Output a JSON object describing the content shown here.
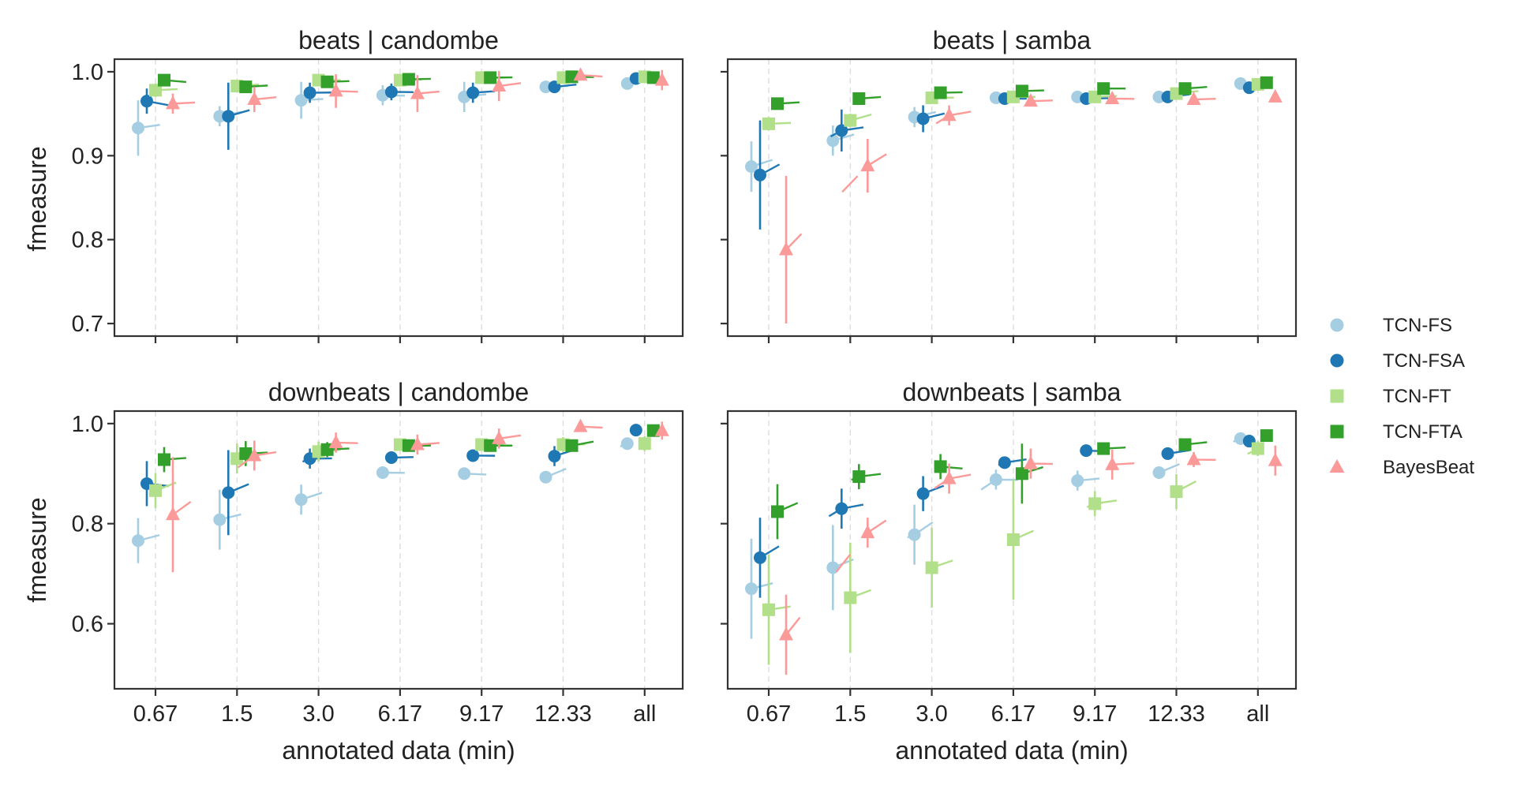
{
  "chart_data": {
    "type": "scatter",
    "description_kind": "point-plot with error bars, 2x2 facets",
    "x_categories": [
      "0.67",
      "1.5",
      "3.0",
      "6.17",
      "9.17",
      "12.33",
      "all"
    ],
    "xlabel": "annotated data (min)",
    "ylabel": "fmeasure",
    "grid": "vertical dashed",
    "legend_position": "right",
    "series": [
      {
        "name": "TCN-FS",
        "color": "#a6cee3",
        "marker": "circle"
      },
      {
        "name": "TCN-FSA",
        "color": "#1f78b4",
        "marker": "circle"
      },
      {
        "name": "TCN-FT",
        "color": "#b2df8a",
        "marker": "square"
      },
      {
        "name": "TCN-FTA",
        "color": "#33a02c",
        "marker": "square"
      },
      {
        "name": "BayesBeat",
        "color": "#fb9a99",
        "marker": "triangle"
      }
    ],
    "panels": [
      {
        "title": "beats | candombe",
        "ylim": [
          0.685,
          1.015
        ],
        "yticks": [
          "0.7",
          "0.8",
          "0.9",
          "1.0"
        ],
        "yticks_values": [
          0.7,
          0.8,
          0.9,
          1.0
        ],
        "values": {
          "TCN-FS": [
            0.933,
            0.947,
            0.966,
            0.972,
            0.97,
            0.982,
            0.986
          ],
          "TCN-FSA": [
            0.965,
            0.947,
            0.975,
            0.976,
            0.975,
            0.982,
            0.992
          ],
          "TCN-FT": [
            0.978,
            0.983,
            0.99,
            0.99,
            0.993,
            0.993,
            0.994
          ],
          "TCN-FTA": [
            0.99,
            0.982,
            0.988,
            0.991,
            0.993,
            0.994,
            0.993
          ],
          "BayesBeat": [
            0.962,
            0.967,
            0.977,
            0.974,
            0.983,
            0.996,
            0.99
          ]
        },
        "errors": {
          "TCN-FS": [
            0.033,
            0.012,
            0.022,
            0.012,
            0.018,
            0.004,
            0.006
          ],
          "TCN-FSA": [
            0.015,
            0.04,
            0.012,
            0.01,
            0.012,
            0.005,
            0.004
          ],
          "TCN-FT": [
            0.008,
            0.006,
            0.004,
            0.004,
            0.003,
            0.003,
            0.003
          ],
          "TCN-FTA": [
            0.004,
            0.005,
            0.004,
            0.003,
            0.003,
            0.003,
            0.003
          ],
          "BayesBeat": [
            0.012,
            0.015,
            0.02,
            0.022,
            0.018,
            0.004,
            0.012
          ]
        }
      },
      {
        "title": "beats | samba",
        "ylim": [
          0.685,
          1.015
        ],
        "yticks": [
          "0.7",
          "0.8",
          "0.9",
          "1.0"
        ],
        "yticks_values": [
          0.7,
          0.8,
          0.9,
          1.0
        ],
        "values": {
          "TCN-FS": [
            0.887,
            0.918,
            0.946,
            0.969,
            0.97,
            0.97,
            0.986
          ],
          "TCN-FSA": [
            0.877,
            0.93,
            0.944,
            0.968,
            0.968,
            0.97,
            0.981
          ],
          "TCN-FT": [
            0.938,
            0.942,
            0.969,
            0.97,
            0.97,
            0.974,
            0.985
          ],
          "TCN-FTA": [
            0.962,
            0.968,
            0.975,
            0.977,
            0.98,
            0.98,
            0.987
          ],
          "BayesBeat": [
            0.788,
            0.888,
            0.948,
            0.965,
            0.968,
            0.967,
            0.97
          ]
        },
        "errors": {
          "TCN-FS": [
            0.03,
            0.018,
            0.012,
            0.005,
            0.004,
            0.004,
            0.004
          ],
          "TCN-FSA": [
            0.065,
            0.025,
            0.016,
            0.005,
            0.004,
            0.004,
            0.004
          ],
          "TCN-FT": [
            0.008,
            0.008,
            0.006,
            0.004,
            0.004,
            0.004,
            0.003
          ],
          "TCN-FTA": [
            0.004,
            0.004,
            0.004,
            0.003,
            0.003,
            0.003,
            0.003
          ],
          "BayesBeat": [
            0.088,
            0.032,
            0.012,
            0.006,
            0.005,
            0.005,
            0.004
          ]
        }
      },
      {
        "title": "downbeats | candombe",
        "ylim": [
          0.47,
          1.025
        ],
        "yticks": [
          "0.6",
          "0.8",
          "1.0"
        ],
        "yticks_values": [
          0.6,
          0.8,
          1.0
        ],
        "values": {
          "TCN-FS": [
            0.766,
            0.808,
            0.848,
            0.902,
            0.9,
            0.893,
            0.96
          ],
          "TCN-FSA": [
            0.88,
            0.862,
            0.93,
            0.932,
            0.936,
            0.935,
            0.987
          ],
          "TCN-FT": [
            0.866,
            0.93,
            0.944,
            0.958,
            0.958,
            0.958,
            0.96
          ],
          "TCN-FTA": [
            0.928,
            0.94,
            0.948,
            0.956,
            0.956,
            0.956,
            0.986
          ],
          "BayesBeat": [
            0.818,
            0.936,
            0.962,
            0.958,
            0.97,
            0.994,
            0.986
          ]
        },
        "errors": {
          "TCN-FS": [
            0.045,
            0.06,
            0.03,
            0.01,
            0.008,
            0.01,
            0.012
          ],
          "TCN-FSA": [
            0.045,
            0.085,
            0.02,
            0.01,
            0.01,
            0.02,
            0.008
          ],
          "TCN-FT": [
            0.035,
            0.03,
            0.02,
            0.012,
            0.012,
            0.015,
            0.015
          ],
          "TCN-FTA": [
            0.025,
            0.025,
            0.015,
            0.01,
            0.01,
            0.01,
            0.005
          ],
          "BayesBeat": [
            0.115,
            0.03,
            0.02,
            0.02,
            0.02,
            0.005,
            0.018
          ]
        }
      },
      {
        "title": "downbeats | samba",
        "ylim": [
          0.47,
          1.025
        ],
        "yticks": [
          "0.6",
          "0.8",
          "1.0"
        ],
        "yticks_values": [
          0.6,
          0.8,
          1.0
        ],
        "values": {
          "TCN-FS": [
            0.67,
            0.712,
            0.778,
            0.888,
            0.886,
            0.902,
            0.97
          ],
          "TCN-FSA": [
            0.732,
            0.83,
            0.86,
            0.922,
            0.946,
            0.94,
            0.965
          ],
          "TCN-FT": [
            0.628,
            0.652,
            0.712,
            0.768,
            0.84,
            0.864,
            0.95
          ],
          "TCN-FTA": [
            0.824,
            0.894,
            0.914,
            0.9,
            0.95,
            0.958,
            0.976
          ],
          "BayesBeat": [
            0.578,
            0.782,
            0.89,
            0.92,
            0.918,
            0.928,
            0.926
          ]
        },
        "errors": {
          "TCN-FS": [
            0.1,
            0.085,
            0.06,
            0.02,
            0.02,
            0.012,
            0.008
          ],
          "TCN-FSA": [
            0.08,
            0.04,
            0.035,
            0.012,
            0.008,
            0.01,
            0.008
          ],
          "TCN-FT": [
            0.11,
            0.11,
            0.08,
            0.12,
            0.025,
            0.035,
            0.015
          ],
          "TCN-FTA": [
            0.055,
            0.025,
            0.025,
            0.06,
            0.012,
            0.01,
            0.008
          ],
          "BayesBeat": [
            0.08,
            0.03,
            0.03,
            0.03,
            0.03,
            0.015,
            0.03
          ]
        }
      }
    ]
  }
}
